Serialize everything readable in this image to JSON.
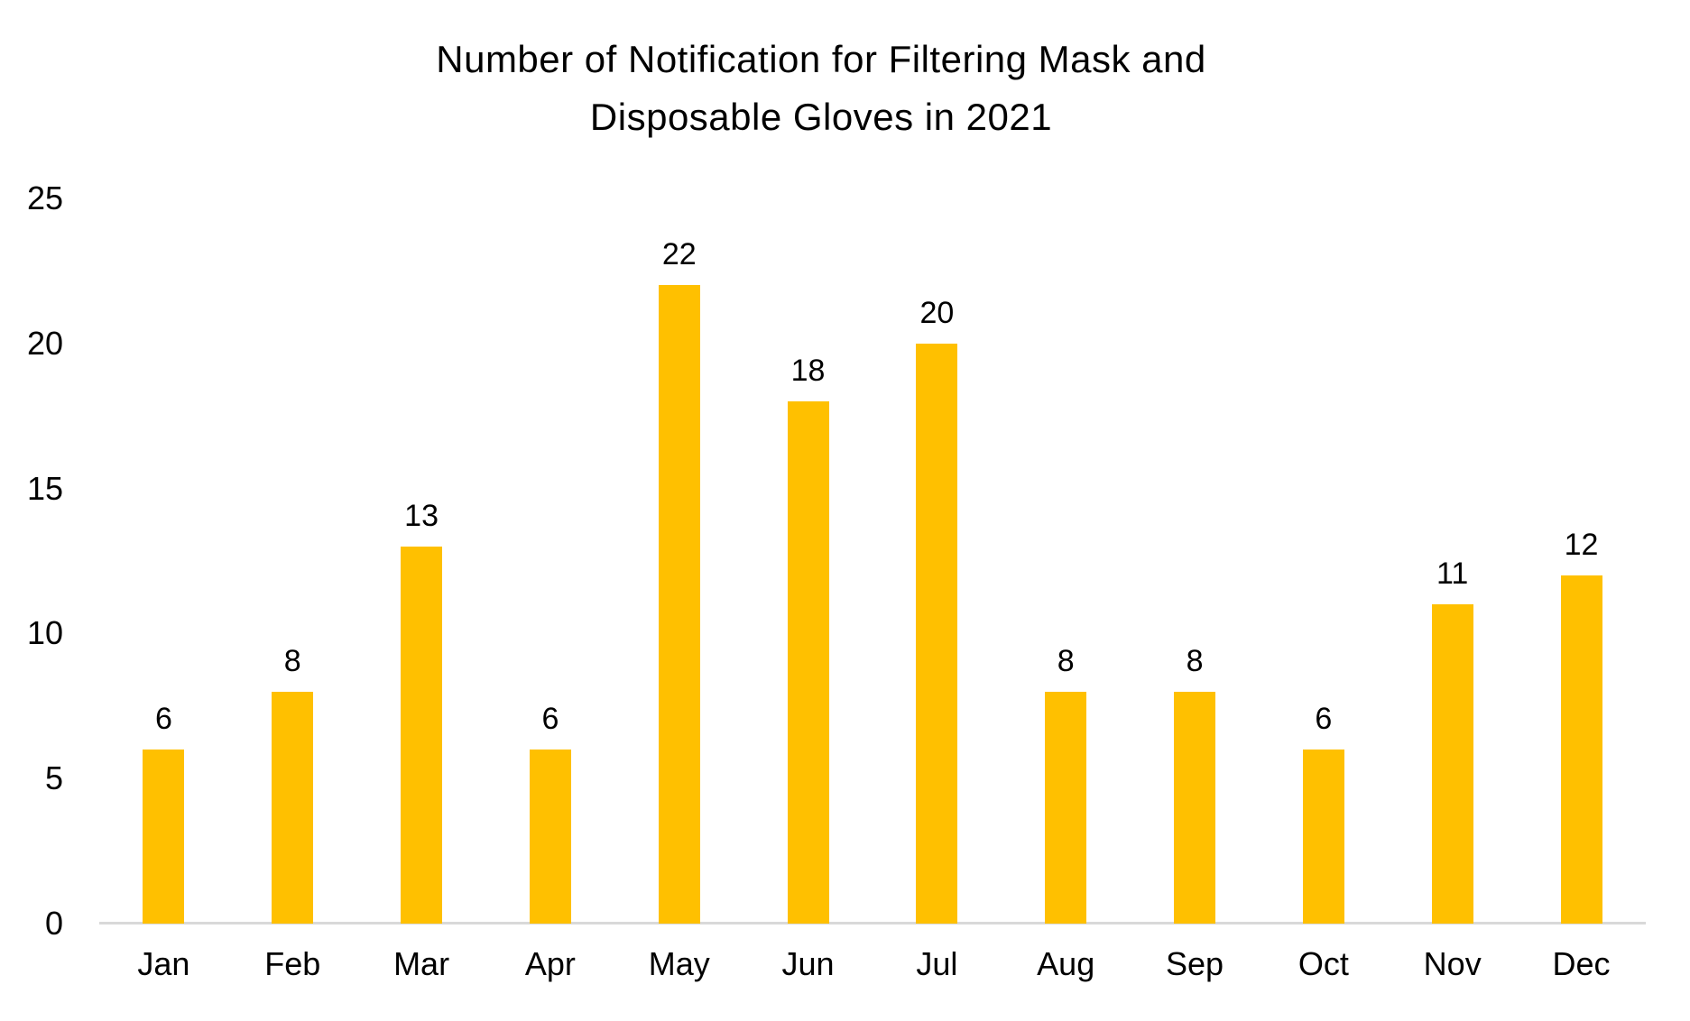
{
  "page": {
    "background_color": "#ffffff"
  },
  "chart_data": {
    "type": "bar",
    "title": "Number of Notification for Filtering Mask and Disposable Gloves in 2021",
    "title_lines": [
      "Number of Notification for Filtering Mask and",
      "Disposable Gloves in 2021"
    ],
    "categories": [
      "Jan",
      "Feb",
      "Mar",
      "Apr",
      "May",
      "Jun",
      "Jul",
      "Aug",
      "Sep",
      "Oct",
      "Nov",
      "Dec"
    ],
    "values": [
      6,
      8,
      13,
      6,
      22,
      18,
      20,
      8,
      8,
      6,
      11,
      12
    ],
    "data_labels_shown": true,
    "xlabel": "",
    "ylabel": "",
    "ylim": [
      0,
      25
    ],
    "yticks": [
      0,
      5,
      10,
      15,
      20,
      25
    ],
    "grid": false,
    "legend": false,
    "bar_color": "#FFC000",
    "axis_line_color": "#D9D9D9",
    "text_color": "#000000"
  }
}
